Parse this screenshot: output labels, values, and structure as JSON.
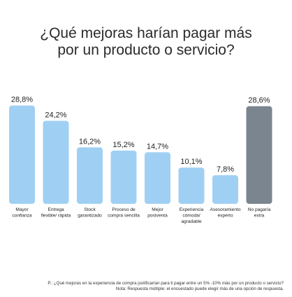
{
  "title": "¿Qué mejoras harían pagar más\npor un producto o servicio?",
  "chart_data": {
    "type": "bar",
    "categories": [
      [
        "Mayor",
        "confianza"
      ],
      [
        "Entrega",
        "flexible/ rápida"
      ],
      [
        "Stock",
        "garantizado"
      ],
      [
        "Proceso de",
        "compra sencilla"
      ],
      [
        "Mejor",
        "postventa"
      ],
      [
        "Experiencia",
        "cómoda/",
        "agradable"
      ],
      [
        "Asesoramiento",
        "experto"
      ],
      [
        "No pagaría",
        "extra"
      ]
    ],
    "values": [
      28.8,
      24.2,
      16.2,
      15.2,
      14.7,
      10.1,
      7.8,
      28.6
    ],
    "value_labels": [
      "28,8%",
      "24,2%",
      "16,2%",
      "15,2%",
      "14,7%",
      "10,1%",
      "7,8%",
      "28,6%"
    ],
    "colors": [
      "#9fd0f4",
      "#9fd0f4",
      "#9fd0f4",
      "#9fd0f4",
      "#9fd0f4",
      "#9fd0f4",
      "#9fd0f4",
      "#7a858f"
    ],
    "ylim": [
      0,
      30
    ],
    "grid": false,
    "legend": "none"
  },
  "footnotes": {
    "question": "P.: ¿Qué mejoras en la experiencia de compra justificarían para ti pagar entre un 5% -10% más por un producto o servicio?",
    "note": "Nota: Respuesta múltiple: el encuestado puede elegir más de una opción de respuesta."
  }
}
